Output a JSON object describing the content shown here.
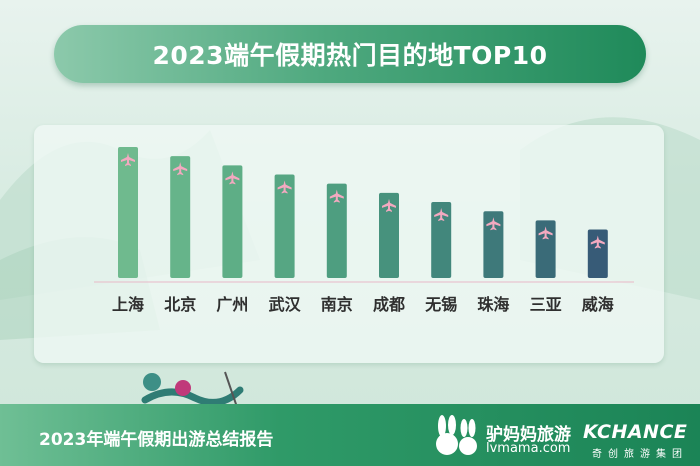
{
  "header": {
    "title": "2023端午假期热门目的地TOP10"
  },
  "footer": {
    "report_title": "2023年端午假期出游总结报告",
    "brand_name": "驴妈妈旅游",
    "brand_url": "lvmama.com",
    "brand2_name": "KCHANCE",
    "brand2_sub": "奇创旅游集团"
  },
  "chart_data": {
    "type": "bar",
    "title": "2023端午假期热门目的地TOP10",
    "categories": [
      "上海",
      "北京",
      "广州",
      "武汉",
      "南京",
      "成都",
      "无锡",
      "珠海",
      "三亚",
      "威海"
    ],
    "values": [
      10,
      9.3,
      8.6,
      7.9,
      7.2,
      6.5,
      5.8,
      5.1,
      4.4,
      3.7
    ],
    "ylim": [
      0,
      10
    ],
    "xlabel": "",
    "ylabel": "",
    "grid": false,
    "colors": [
      "#6fba8e",
      "#66b48a",
      "#5eae86",
      "#56a683",
      "#4e9e80",
      "#47927d",
      "#42877c",
      "#3e797a",
      "#3a6b78",
      "#375b77"
    ],
    "marker_icon": "airplane-icon",
    "marker_color": "#f3a9c0"
  }
}
